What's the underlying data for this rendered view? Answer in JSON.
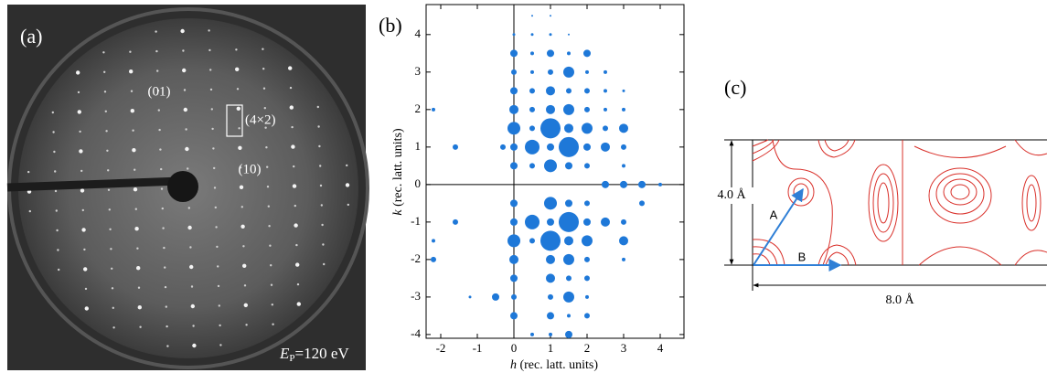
{
  "panel_a": {
    "label": "(a)",
    "spot_01": "(01)",
    "unit_cell": "(4×2)",
    "spot_10": "(10)",
    "energy": {
      "symbol": "E",
      "subscript": "P",
      "text": "=120 eV"
    }
  },
  "chart_data": {
    "type": "scatter",
    "label": "(b)",
    "color": "#1e78d8",
    "xlabel_symbol": "h",
    "xlabel": "(rec. latt. units)",
    "ylabel_symbol": "k",
    "ylabel": "(rec. latt. units)",
    "xlim": [
      -2.4,
      4.65
    ],
    "ylim": [
      -4.1,
      4.8
    ],
    "xticks": [
      -2,
      -1,
      0,
      1,
      2,
      3,
      4
    ],
    "yticks": [
      -4,
      -3,
      -2,
      -1,
      0,
      1,
      2,
      3,
      4
    ],
    "zero_lines": true,
    "x": [
      0.5,
      1,
      0,
      0.5,
      1,
      1.5,
      0,
      0.5,
      1,
      1.5,
      2,
      0,
      0.5,
      1,
      1.5,
      2,
      2.5,
      0,
      0.5,
      1,
      1.5,
      2,
      2.5,
      3,
      -2.2,
      0,
      0.5,
      1,
      1.5,
      2,
      2.5,
      3,
      0,
      0.5,
      1,
      1.5,
      2,
      2.5,
      3,
      -1.6,
      -0.3,
      0,
      0.5,
      1,
      1.5,
      2,
      2.5,
      3,
      0,
      0.5,
      1,
      1.5,
      2,
      3,
      2.5,
      3,
      3.5,
      4,
      0,
      1,
      1.5,
      2,
      3.5,
      -1.6,
      0,
      0.5,
      1,
      1.5,
      2,
      2.5,
      3,
      -2.2,
      0,
      0.5,
      1,
      1.5,
      2,
      3,
      -2.2,
      0,
      1,
      1.5,
      2,
      3,
      0,
      1,
      1.5,
      2,
      -1.2,
      -0.5,
      0,
      1,
      1.5,
      2,
      0,
      1,
      1.5,
      2,
      0.5,
      1,
      1.5
    ],
    "values": [
      4.5,
      4.5,
      4,
      4,
      4,
      4,
      3.5,
      3.5,
      3.5,
      3.5,
      3.5,
      3,
      3,
      3,
      3,
      3,
      3,
      2.5,
      2.5,
      2.5,
      2.5,
      2.5,
      2.5,
      2.5,
      2,
      2,
      2,
      2,
      2,
      2,
      2,
      2,
      1.5,
      1.5,
      1.5,
      1.5,
      1.5,
      1.5,
      1.5,
      1,
      1,
      1,
      1,
      1,
      1,
      1,
      1,
      1,
      0.5,
      0.5,
      0.5,
      0.5,
      0.5,
      0.5,
      0,
      0,
      0,
      0,
      -0.5,
      -0.5,
      -0.5,
      -0.5,
      -0.5,
      -1,
      -1,
      -1,
      -1,
      -1,
      -1,
      -1,
      -1,
      -1.5,
      -1.5,
      -1.5,
      -1.5,
      -1.5,
      -1.5,
      -1.5,
      -2,
      -2,
      -2,
      -2,
      -2,
      -2,
      -2.5,
      -2.5,
      -2.5,
      -2.5,
      -3,
      -3,
      -3,
      -3,
      -3,
      -3,
      -3.5,
      -3.5,
      -3.5,
      -3.5,
      -4,
      -4,
      -4
    ],
    "sizes": [
      1,
      1,
      1.5,
      1.5,
      1.5,
      1,
      4,
      2,
      4,
      2,
      4,
      3,
      2,
      3,
      6,
      2,
      2,
      4,
      3,
      5,
      3,
      3,
      2,
      1.5,
      2,
      5,
      3,
      5,
      6,
      3,
      2,
      2,
      7,
      3,
      11,
      5,
      6,
      3,
      5,
      3,
      3,
      4,
      8,
      4,
      11,
      4,
      5,
      3,
      4,
      3,
      7,
      4,
      3,
      2,
      4,
      4,
      4,
      2,
      4,
      7,
      4,
      3,
      3,
      3,
      4,
      8,
      4,
      11,
      4,
      5,
      3,
      2,
      7,
      3,
      11,
      5,
      6,
      5,
      3,
      5,
      5,
      6,
      3,
      2,
      4,
      5,
      3,
      3,
      1.5,
      4,
      3,
      3,
      6,
      2,
      4,
      4,
      2,
      3,
      2,
      2,
      4
    ]
  },
  "panel_c": {
    "label": "(c)",
    "height_label": "4.0 Å",
    "width_label": "8.0 Å",
    "vector_a": "A",
    "vector_b": "B"
  }
}
